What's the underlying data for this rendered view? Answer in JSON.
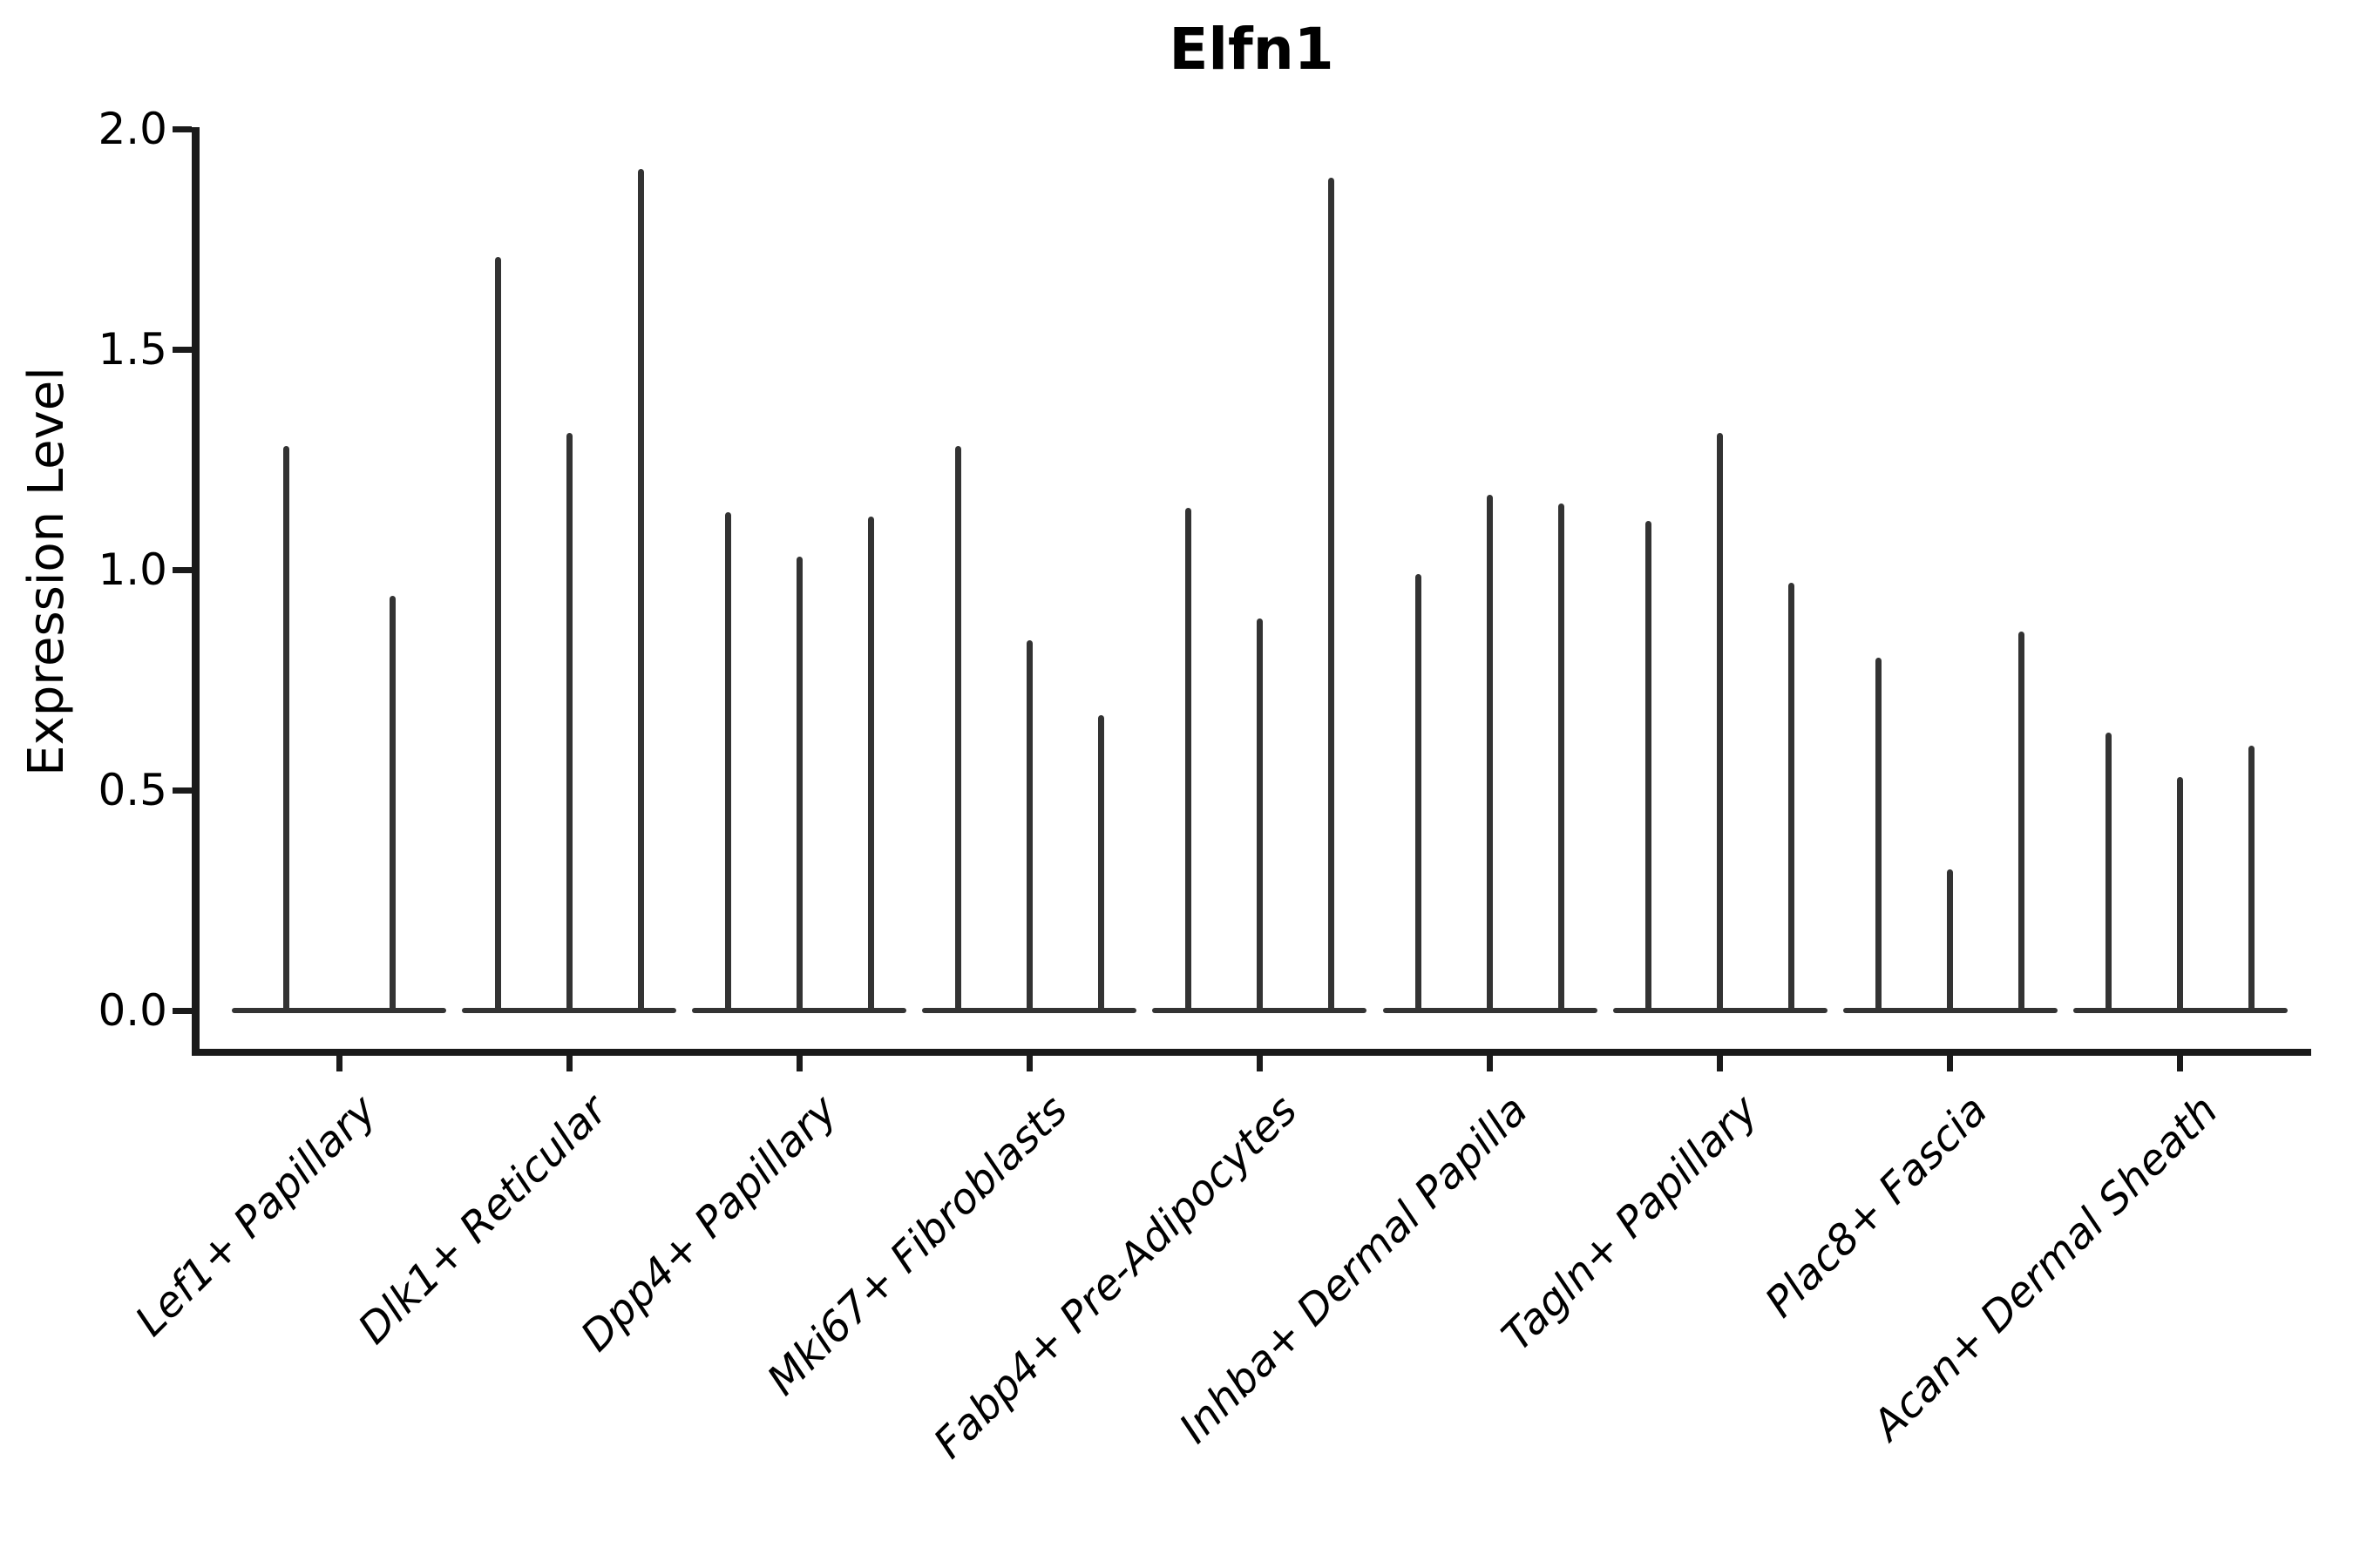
{
  "chart_data": {
    "type": "violin",
    "title": "Elfn1",
    "ylabel": "Expression Level",
    "xlabel": "",
    "ylim": [
      0.0,
      2.0
    ],
    "yticks": [
      "0.0",
      "0.5",
      "1.0",
      "1.5",
      "2.0"
    ],
    "ytick_values": [
      0.0,
      0.5,
      1.0,
      1.5,
      2.0
    ],
    "grid": "off",
    "legend": "none",
    "categories": [
      "Lef1+ Papillary",
      "Dlk1+ Reticular",
      "Dpp4+ Papillary",
      "Mki67+ Fibroblasts",
      "Fabp4+ Pre-Adipocytes",
      "Inhba+ Dermal Papilla",
      "Tagln+ Papillary",
      "Plac8+ Fascia",
      "Acan+ Dermal Sheath"
    ],
    "groups": [
      {
        "label": "Lef1+ Papillary",
        "violin_max_values": [
          1.28,
          0.94
        ]
      },
      {
        "label": "Dlk1+ Reticular",
        "violin_max_values": [
          1.71,
          1.31,
          1.91
        ]
      },
      {
        "label": "Dpp4+ Papillary",
        "violin_max_values": [
          1.13,
          1.03,
          1.12
        ]
      },
      {
        "label": "Mki67+ Fibroblasts",
        "violin_max_values": [
          1.28,
          0.84,
          0.67
        ]
      },
      {
        "label": "Fabp4+ Pre-Adipocytes",
        "violin_max_values": [
          1.14,
          0.89,
          1.89
        ]
      },
      {
        "label": "Inhba+ Dermal Papilla",
        "violin_max_values": [
          0.99,
          1.17,
          1.15
        ]
      },
      {
        "label": "Tagln+ Papillary",
        "violin_max_values": [
          1.11,
          1.31,
          0.97
        ]
      },
      {
        "label": "Plac8+ Fascia",
        "violin_max_values": [
          0.8,
          0.32,
          0.86
        ]
      },
      {
        "label": "Acan+ Dermal Sheath",
        "violin_max_values": [
          0.63,
          0.53,
          0.6
        ]
      }
    ],
    "description": "Violin plot of Elfn1 expression level per fibroblast cluster; violins are needle-thin (expression concentrated at 0 with sparse high-expressing cells).",
    "colors": {
      "violin_line": "#333333",
      "axis_line": "#1a1a1a",
      "text": "#000000",
      "background": "#ffffff"
    }
  }
}
